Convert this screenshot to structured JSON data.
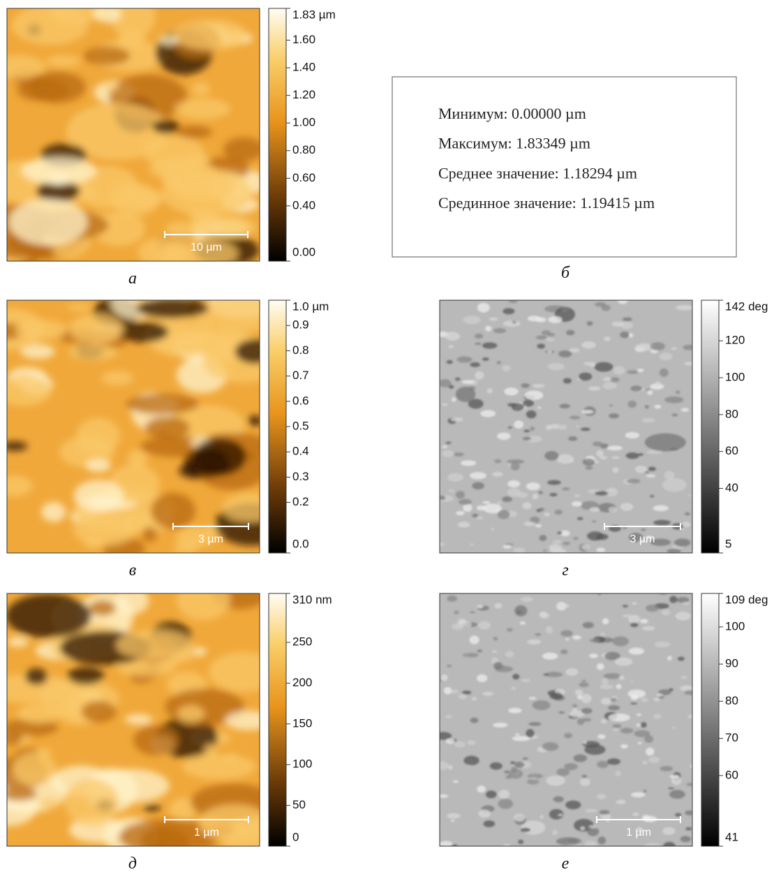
{
  "panels": [
    {
      "caption": "а",
      "palette": "gold",
      "scale_bar": "10 µm",
      "ticks": [
        {
          "value": 1.83,
          "label": "1.83 µm"
        },
        {
          "value": 1.6,
          "label": "1.60"
        },
        {
          "value": 1.4,
          "label": "1.40"
        },
        {
          "value": 1.2,
          "label": "1.20"
        },
        {
          "value": 1.0,
          "label": "1.00"
        },
        {
          "value": 0.8,
          "label": "0.80"
        },
        {
          "value": 0.6,
          "label": "0.60"
        },
        {
          "value": 0.4,
          "label": "0.40"
        },
        {
          "value": 0,
          "label": "0.00"
        }
      ]
    },
    {
      "caption": "в",
      "palette": "gold",
      "scale_bar": "3 µm",
      "ticks": [
        {
          "value": 1.0,
          "label": "1.0 µm"
        },
        0.9,
        0.8,
        0.7,
        0.6,
        0.5,
        0.4,
        0.3,
        0.2,
        {
          "value": 0,
          "label": "0.0"
        }
      ]
    },
    {
      "caption": "г",
      "palette": "gray",
      "scale_bar": "3 µm",
      "ticks": [
        {
          "value": 142,
          "label": "142 deg"
        },
        120,
        100,
        80,
        60,
        40,
        5
      ]
    },
    {
      "caption": "д",
      "palette": "gold",
      "scale_bar": "1 µm",
      "ticks": [
        {
          "value": 310,
          "label": "310 nm"
        },
        250,
        200,
        150,
        100,
        50,
        0
      ]
    },
    {
      "caption": "е",
      "palette": "gray",
      "scale_bar": "1 µm",
      "ticks": [
        {
          "value": 109,
          "label": "109 deg"
        },
        100,
        90,
        80,
        70,
        60,
        41
      ]
    }
  ],
  "stats": {
    "caption": "б",
    "lines": [
      "Минимум: 0.00000 µm",
      "Максимум: 1.83349 µm",
      "Среднее значение: 1.18294 µm",
      "Срединное значение: 1.19415 µm"
    ]
  }
}
